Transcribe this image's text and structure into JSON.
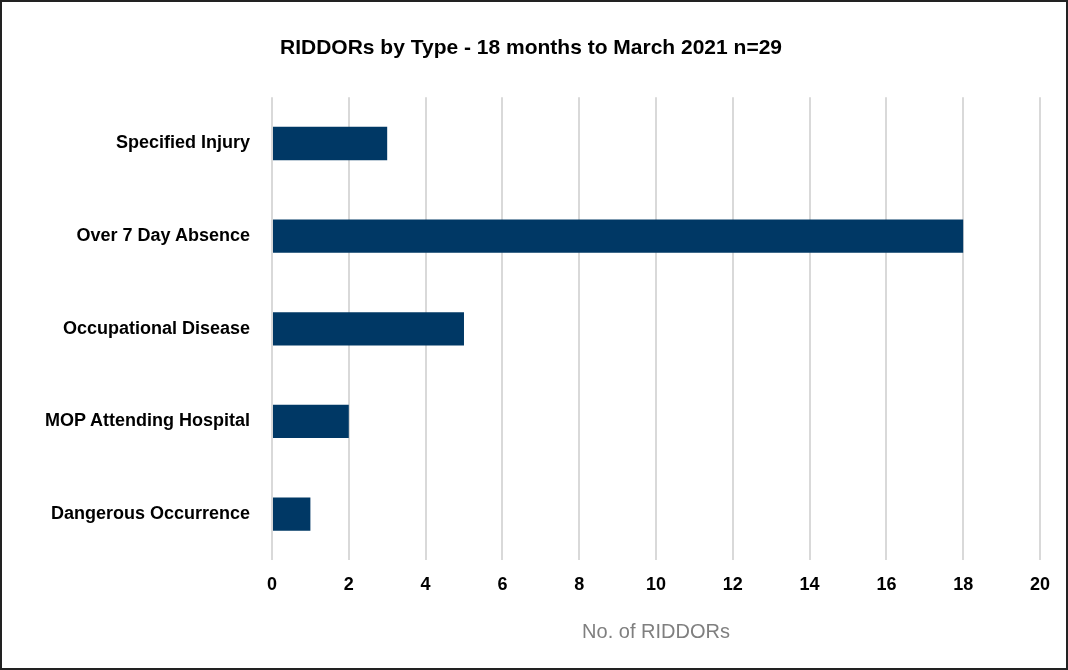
{
  "chart_data": {
    "type": "bar",
    "orientation": "horizontal",
    "title": "RIDDORs by Type - 18 months to March 2021 n=29",
    "xlabel": "No. of RIDDORs",
    "categories": [
      "Specified Injury",
      "Over 7 Day Absence",
      "Occupational Disease",
      "MOP Attending Hospital",
      "Dangerous Occurrence"
    ],
    "values": [
      3,
      18,
      5,
      2,
      1
    ],
    "color": "#003865",
    "xlim": [
      0,
      20
    ],
    "xticks": [
      0,
      2,
      4,
      6,
      8,
      10,
      12,
      14,
      16,
      18,
      20
    ],
    "grid": "x",
    "legend": false
  }
}
